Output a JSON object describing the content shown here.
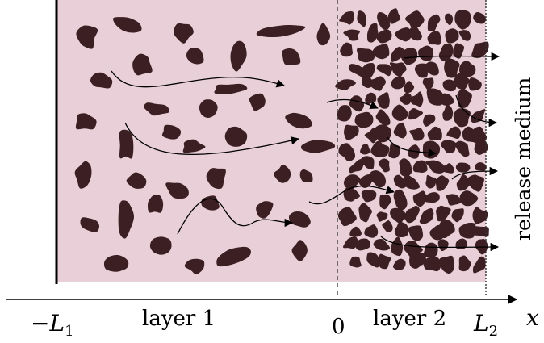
{
  "colors": {
    "medium": "#e8cfd8",
    "particle": "#3b1f22",
    "ink": "#000000"
  },
  "labels": {
    "layer1": "layer 1",
    "layer2": "layer 2",
    "left_boundary": "−L",
    "left_boundary_sub": "1",
    "origin": "0",
    "right_boundary": "L",
    "right_boundary_sub": "2",
    "axis": "x",
    "release": "release medium"
  }
}
